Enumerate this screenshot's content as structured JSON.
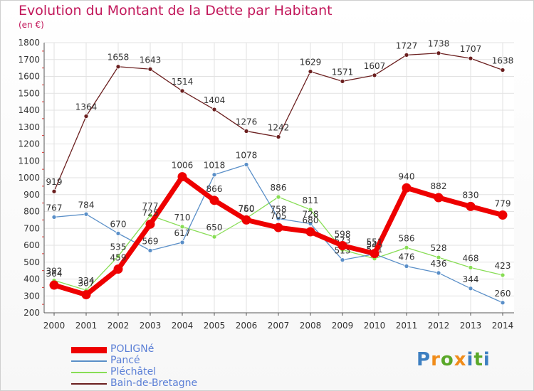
{
  "header": {
    "title": "Evolution du Montant de la Dette par Habitant",
    "subtitle": "(en €)"
  },
  "chart_data": {
    "type": "line",
    "title": "Evolution du Montant de la Dette par Habitant",
    "ylabel": "(en €)",
    "xlabel": "",
    "ylim": [
      200,
      1800
    ],
    "yticks": [
      200,
      300,
      400,
      500,
      600,
      700,
      800,
      900,
      1000,
      1100,
      1200,
      1300,
      1400,
      1500,
      1600,
      1700,
      1800
    ],
    "categories": [
      "2000",
      "2001",
      "2002",
      "2003",
      "2004",
      "2005",
      "2006",
      "2007",
      "2008",
      "2009",
      "2010",
      "2011",
      "2012",
      "2013",
      "2014"
    ],
    "grid": true,
    "series": [
      {
        "name": "POLIGNé",
        "color": "#ee0000",
        "values": [
          364,
          307,
          459,
          725,
          1006,
          866,
          750,
          705,
          680,
          598,
          551,
          940,
          882,
          830,
          779
        ]
      },
      {
        "name": "Pancé",
        "color": "#5a8fc8",
        "values": [
          767,
          784,
          670,
          569,
          617,
          1018,
          1078,
          758,
          728,
          513,
          548,
          476,
          436,
          344,
          260
        ]
      },
      {
        "name": "Pléchâtel",
        "color": "#88dd55",
        "values": [
          392,
          334,
          535,
          777,
          710,
          650,
          760,
          886,
          811,
          573,
          521,
          586,
          528,
          468,
          423
        ]
      },
      {
        "name": "Bain-de-Bretagne",
        "color": "#6b1f1f",
        "values": [
          919,
          1364,
          1658,
          1643,
          1514,
          1404,
          1276,
          1242,
          1629,
          1571,
          1607,
          1727,
          1738,
          1707,
          1638
        ]
      }
    ]
  },
  "branding": {
    "logo_text": "Proxiti",
    "letters": [
      {
        "char": "P",
        "color": "#3d7fc1"
      },
      {
        "char": "r",
        "color": "#f08c1a"
      },
      {
        "char": "o",
        "color": "#5aa829"
      },
      {
        "char": "x",
        "color": "#f08c1a"
      },
      {
        "char": "i",
        "color": "#3d7fc1"
      },
      {
        "char": "t",
        "color": "#5aa829"
      },
      {
        "char": "i",
        "color": "#3d7fc1"
      }
    ]
  }
}
